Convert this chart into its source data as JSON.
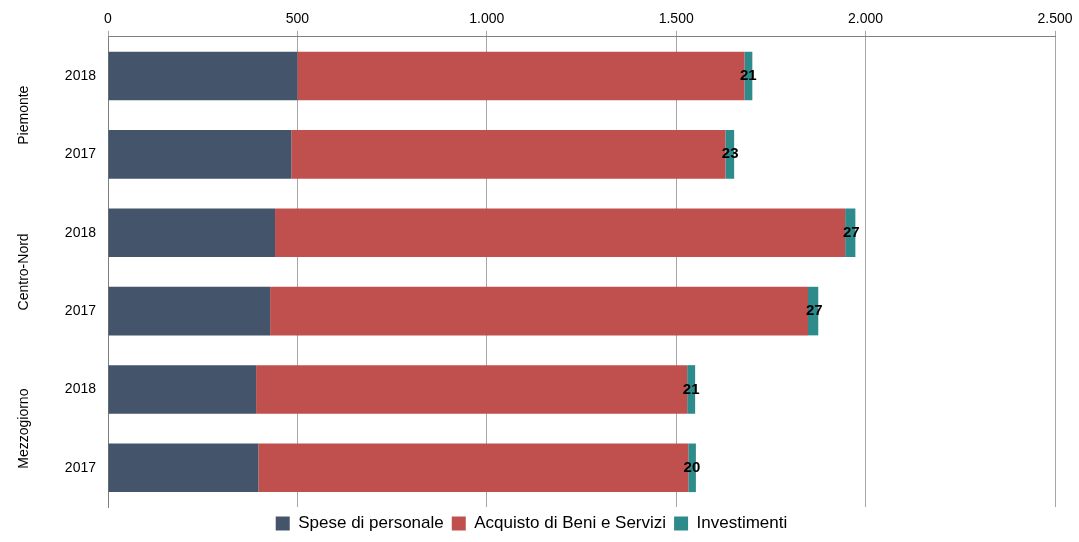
{
  "chart_data": {
    "type": "bar",
    "orientation": "horizontal",
    "stacked": true,
    "categories": [
      "2018",
      "2017",
      "2018",
      "2017",
      "2018",
      "2017"
    ],
    "annotations": [
      "Piemonte",
      "Centro-Nord",
      "Mezzogiorno"
    ],
    "series": [
      {
        "name": "Spese di personale",
        "color": "#44546a",
        "values": [
          500,
          484,
          441,
          428,
          391,
          397
        ]
      },
      {
        "name": "Acquisto di Beni e Servizi",
        "color": "#c0504d",
        "values": [
          1180,
          1146,
          1505,
          1420,
          1138,
          1135
        ]
      },
      {
        "name": "Investimenti",
        "color": "#2e8b8b",
        "values": [
          21,
          23,
          27,
          27,
          21,
          20
        ],
        "value_labels": [
          "21",
          "23",
          "27",
          "27",
          "21",
          "20"
        ]
      }
    ],
    "xlim": [
      0,
      2500
    ],
    "xticks": [
      0,
      500,
      {
        "value": 1000,
        "label": "1.000"
      },
      {
        "value": 1500,
        "label": "1.500"
      },
      {
        "value": 2000,
        "label": "2.000"
      },
      {
        "value": 2500,
        "label": "2.500"
      }
    ],
    "grid": "x",
    "legend": "bottom"
  }
}
